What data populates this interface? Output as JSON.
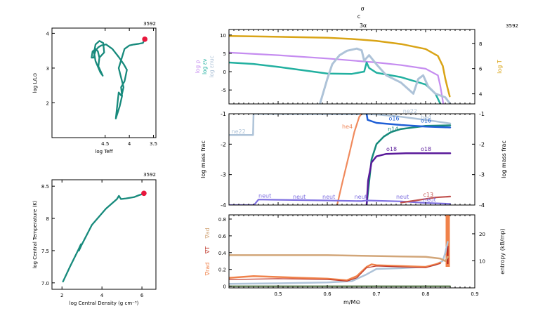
{
  "figure": {
    "top_markers": [
      "σ",
      "c",
      "3α"
    ],
    "model_number": "3592"
  },
  "chart_data": [
    {
      "id": "hr",
      "type": "line",
      "xlabel": "log Teff",
      "ylabel": "log L/L⊙",
      "xlim": [
        5.6,
        3.45
      ],
      "ylim": [
        1.0,
        4.15
      ],
      "xticks": [
        4.5,
        4,
        3.5
      ],
      "xtick_labels": [
        "4.5",
        "4",
        "3.5"
      ],
      "yticks": [
        2,
        3,
        4
      ],
      "ytick_labels": [
        "2",
        "3",
        "4"
      ],
      "line_color": "#178a7c",
      "marker_color": "#e8163c",
      "current_point": [
        3.68,
        3.83
      ],
      "series": [
        {
          "x": [
            4.62,
            4.52,
            4.54,
            4.62,
            4.7,
            4.73,
            4.7,
            4.6,
            4.55,
            4.64,
            4.62,
            4.65,
            4.7,
            4.76,
            4.78,
            4.74,
            4.7,
            4.64,
            4.58,
            4.48,
            4.35,
            4.22,
            4.12,
            4.05,
            4.1,
            4.17,
            4.15,
            4.2,
            4.28,
            4.22,
            4.16,
            4.12,
            4.22,
            4.1,
            4.0,
            3.9,
            3.8,
            3.72,
            3.68
          ],
          "y": [
            3.3,
            3.45,
            3.72,
            3.78,
            3.68,
            3.45,
            3.2,
            2.88,
            2.78,
            3.05,
            3.3,
            3.48,
            3.55,
            3.48,
            3.3,
            3.3,
            3.5,
            3.6,
            3.65,
            3.68,
            3.55,
            3.32,
            3.12,
            2.95,
            2.62,
            2.45,
            2.2,
            1.9,
            1.55,
            2.3,
            2.2,
            2.45,
            3.0,
            3.55,
            3.65,
            3.68,
            3.7,
            3.72,
            3.83
          ]
        }
      ]
    },
    {
      "id": "center",
      "type": "line",
      "xlabel": "log Central Density (g cm⁻³)",
      "ylabel": "log Central Temperature (K)",
      "xlim": [
        1.5,
        6.7
      ],
      "ylim": [
        6.9,
        8.6
      ],
      "xticks": [
        2,
        4,
        6
      ],
      "xtick_labels": [
        "2",
        "4",
        "6"
      ],
      "yticks": [
        7.0,
        7.5,
        8.0,
        8.5
      ],
      "ytick_labels": [
        "7.0",
        "7.5",
        "8",
        "8.5"
      ],
      "line_color": "#178a7c",
      "marker_color": "#e8163c",
      "current_point": [
        6.1,
        8.39
      ],
      "series": [
        {
          "x": [
            2.05,
            2.4,
            2.8,
            2.95,
            2.85,
            3.0,
            3.5,
            4.2,
            4.75,
            4.85,
            4.95,
            5.2,
            5.6,
            5.85,
            6.05,
            6.1
          ],
          "y": [
            7.02,
            7.25,
            7.5,
            7.6,
            7.5,
            7.6,
            7.9,
            8.15,
            8.3,
            8.35,
            8.3,
            8.31,
            8.33,
            8.36,
            8.38,
            8.39
          ]
        }
      ]
    },
    {
      "id": "profile_top",
      "type": "line",
      "xlim": [
        0.4,
        0.9
      ],
      "ylim_left": [
        -8.8,
        11.5
      ],
      "ylim_right": [
        3.2,
        9.1
      ],
      "yticks_left": [
        -5,
        0,
        5,
        10
      ],
      "ytick_labels_left": [
        "-5",
        "0",
        "5",
        "10"
      ],
      "yticks_right": [
        4,
        6,
        8
      ],
      "ytick_labels_right": [
        "4",
        "6",
        "8"
      ],
      "xticks": [
        0.5,
        0.6,
        0.7,
        0.8,
        0.9
      ],
      "left_labels": [
        {
          "text": "log ρ",
          "color": "#c58cf0"
        },
        {
          "text": "log εν",
          "color": "#22b0a0"
        },
        {
          "text": "log εnuc",
          "color": "#aec3d8"
        }
      ],
      "right_label": {
        "text": "log T",
        "color": "#d9a416"
      },
      "series": [
        {
          "name": "log ρ",
          "axis": "left",
          "color": "#c58cf0",
          "width": 2.2,
          "x": [
            0.4,
            0.5,
            0.6,
            0.7,
            0.75,
            0.8,
            0.825,
            0.83,
            0.836
          ],
          "y": [
            5.2,
            4.5,
            3.6,
            2.5,
            1.8,
            0.8,
            -1.0,
            -4.0,
            -8.8
          ]
        },
        {
          "name": "log εν",
          "axis": "left",
          "color": "#22b0a0",
          "width": 2.5,
          "x": [
            0.4,
            0.45,
            0.5,
            0.55,
            0.6,
            0.65,
            0.675,
            0.68,
            0.685,
            0.7,
            0.75,
            0.8,
            0.82,
            0.83
          ],
          "y": [
            2.5,
            2.1,
            1.3,
            0.4,
            -0.5,
            -0.6,
            0.0,
            2.5,
            1.0,
            -0.3,
            -1.5,
            -3.5,
            -6.0,
            -8.8
          ]
        },
        {
          "name": "log εnuc",
          "axis": "left",
          "color": "#aec3d8",
          "width": 3.0,
          "x": [
            0.585,
            0.6,
            0.61,
            0.625,
            0.64,
            0.66,
            0.67,
            0.675,
            0.685,
            0.7,
            0.72,
            0.75,
            0.775,
            0.785,
            0.795,
            0.805,
            0.82,
            0.84,
            0.85
          ],
          "y": [
            -8.8,
            -2.0,
            2.0,
            4.5,
            5.7,
            6.3,
            5.8,
            3.0,
            4.5,
            2.0,
            -1.0,
            -3.0,
            -6.0,
            -2.0,
            -1.0,
            -4.0,
            -6.0,
            -7.0,
            -8.8
          ]
        },
        {
          "name": "log T",
          "axis": "right",
          "color": "#d9a416",
          "width": 2.5,
          "x": [
            0.4,
            0.5,
            0.6,
            0.65,
            0.7,
            0.75,
            0.8,
            0.825,
            0.835,
            0.84,
            0.845,
            0.847,
            0.849
          ],
          "y": [
            8.58,
            8.52,
            8.45,
            8.35,
            8.2,
            7.95,
            7.55,
            7.0,
            6.2,
            5.2,
            4.4,
            4.1,
            3.8
          ]
        }
      ]
    },
    {
      "id": "profile_mid",
      "type": "line",
      "xlim": [
        0.4,
        0.9
      ],
      "ylim": [
        -4,
        -1
      ],
      "yticks": [
        -4,
        -3,
        -2,
        -1
      ],
      "ytick_labels": [
        "-4",
        "-3",
        "-2",
        "-1"
      ],
      "xticks": [
        0.5,
        0.6,
        0.7,
        0.8,
        0.9
      ],
      "ylabel_left": "log mass frac",
      "ylabel_right": "log mass frac",
      "series": [
        {
          "name": "ne22",
          "color": "#aec3d8",
          "width": 2.5,
          "x": [
            0.4,
            0.449,
            0.45,
            0.451,
            0.7,
            0.75,
            0.8,
            0.85
          ],
          "y": [
            -1.7,
            -1.7,
            -1.0,
            -1.0,
            -1.02,
            -1.1,
            -1.2,
            -1.32
          ]
        },
        {
          "name": "he4",
          "color": "#f08a5d",
          "width": 2.2,
          "x": [
            0.62,
            0.63,
            0.645,
            0.655,
            0.665,
            0.67
          ],
          "y": [
            -4.0,
            -3.3,
            -2.3,
            -1.6,
            -1.1,
            -1.0
          ]
        },
        {
          "name": "n14",
          "color": "#178a7c",
          "width": 2.5,
          "x": [
            0.68,
            0.69,
            0.7,
            0.715,
            0.73,
            0.75,
            0.8,
            0.85
          ],
          "y": [
            -4.0,
            -2.5,
            -2.0,
            -1.75,
            -1.6,
            -1.5,
            -1.4,
            -1.38
          ]
        },
        {
          "name": "o16",
          "color": "#1f5fd6",
          "width": 2.5,
          "x": [
            0.68,
            0.682,
            0.7,
            0.75,
            0.8,
            0.85
          ],
          "y": [
            -1.0,
            -1.2,
            -1.3,
            -1.37,
            -1.42,
            -1.45
          ]
        },
        {
          "name": "o18",
          "color": "#5a1a9a",
          "width": 2.5,
          "x": [
            0.68,
            0.683,
            0.69,
            0.7,
            0.72,
            0.76,
            0.85
          ],
          "y": [
            -4.0,
            -3.2,
            -2.6,
            -2.4,
            -2.32,
            -2.3,
            -2.3
          ]
        },
        {
          "name": "neut",
          "color": "#7e6fe0",
          "width": 2.2,
          "x": [
            0.4,
            0.451,
            0.46,
            0.6,
            0.67,
            0.68,
            0.75,
            0.8,
            0.85
          ],
          "y": [
            -4.0,
            -4.0,
            -3.82,
            -3.85,
            -3.87,
            -3.85,
            -3.88,
            -3.93,
            -3.96
          ]
        },
        {
          "name": "c13",
          "color": "#c0504d",
          "width": 2.2,
          "x": [
            0.75,
            0.78,
            0.8,
            0.82,
            0.85
          ],
          "y": [
            -3.92,
            -3.85,
            -3.8,
            -3.75,
            -3.72
          ]
        }
      ],
      "annotations": [
        {
          "text": "ne22",
          "x": 0.405,
          "y": -1.65,
          "color": "#aec3d8"
        },
        {
          "text": "ne22",
          "x": 0.754,
          "y": -0.98,
          "color": "#aec3d8"
        },
        {
          "text": "he4",
          "x": 0.63,
          "y": -1.48,
          "color": "#f08a5d"
        },
        {
          "text": "n14",
          "x": 0.723,
          "y": -1.57,
          "color": "#178a7c"
        },
        {
          "text": "o16",
          "x": 0.725,
          "y": -1.22,
          "color": "#1f5fd6"
        },
        {
          "text": "o16",
          "x": 0.79,
          "y": -1.29,
          "color": "#1f5fd6"
        },
        {
          "text": "he4",
          "x": 0.79,
          "y": -1.19,
          "color": "#aec3d8"
        },
        {
          "text": "o18",
          "x": 0.72,
          "y": -2.22,
          "color": "#5a1a9a"
        },
        {
          "text": "o18",
          "x": 0.79,
          "y": -2.22,
          "color": "#5a1a9a"
        },
        {
          "text": "neut",
          "x": 0.46,
          "y": -3.76,
          "color": "#7e6fe0"
        },
        {
          "text": "neut",
          "x": 0.53,
          "y": -3.79,
          "color": "#7e6fe0"
        },
        {
          "text": "neut",
          "x": 0.59,
          "y": -3.79,
          "color": "#7e6fe0"
        },
        {
          "text": "neut",
          "x": 0.655,
          "y": -3.79,
          "color": "#7e6fe0"
        },
        {
          "text": "neut",
          "x": 0.74,
          "y": -3.79,
          "color": "#7e6fe0"
        },
        {
          "text": "c13",
          "x": 0.795,
          "y": -3.72,
          "color": "#c0504d"
        },
        {
          "text": "neut",
          "x": 0.795,
          "y": -3.88,
          "color": "#7e6fe0"
        }
      ]
    },
    {
      "id": "profile_bot",
      "type": "line",
      "xlim": [
        0.4,
        0.9
      ],
      "ylim_left": [
        -0.02,
        0.85
      ],
      "ylim_right": [
        0,
        27
      ],
      "yticks_left": [
        0,
        0.2,
        0.4,
        0.6,
        0.8
      ],
      "ytick_labels_left": [
        "0",
        "0.2",
        "0.4",
        "0.6",
        "0.8"
      ],
      "yticks_right": [
        10,
        20
      ],
      "ytick_labels_right": [
        "10",
        "20"
      ],
      "xticks": [
        0.5,
        0.6,
        0.7,
        0.8,
        0.9
      ],
      "xtick_labels": [
        "0.5",
        "0.6",
        "0.7",
        "0.8",
        "0.9"
      ],
      "xlabel": "m/M⊙",
      "left_labels": [
        {
          "text": "∇ad",
          "color": "#d2a679"
        },
        {
          "text": "∇T",
          "color": "#c0392b"
        },
        {
          "text": "∇rad",
          "color": "#f0824a"
        }
      ],
      "right_label": {
        "text": "entropy (kB/mp)",
        "color": "#222222"
      },
      "series": [
        {
          "name": "entropy",
          "axis": "right",
          "color": "#aec3d8",
          "width": 2.5,
          "x": [
            0.4,
            0.5,
            0.6,
            0.65,
            0.68,
            0.7,
            0.75,
            0.8,
            0.82,
            0.835,
            0.84,
            0.845
          ],
          "y": [
            1.5,
            1.7,
            2.0,
            2.5,
            5.0,
            7.0,
            7.3,
            7.8,
            8.5,
            10.0,
            13.0,
            17.0
          ]
        },
        {
          "name": "∇ad",
          "axis": "left",
          "color": "#d2a679",
          "width": 2.5,
          "x": [
            0.4,
            0.5,
            0.6,
            0.65,
            0.7,
            0.75,
            0.8,
            0.83,
            0.84,
            0.845
          ],
          "y": [
            0.37,
            0.37,
            0.37,
            0.365,
            0.36,
            0.355,
            0.35,
            0.33,
            0.3,
            0.35
          ]
        },
        {
          "name": "∇rad",
          "axis": "left",
          "color": "#f0824a",
          "width": 2.5,
          "x": [
            0.4,
            0.45,
            0.5,
            0.55,
            0.6,
            0.64,
            0.66,
            0.68,
            0.69,
            0.7,
            0.75,
            0.8,
            0.82,
            0.83
          ],
          "y": [
            0.1,
            0.12,
            0.11,
            0.1,
            0.09,
            0.07,
            0.12,
            0.23,
            0.26,
            0.25,
            0.24,
            0.23,
            0.26,
            0.28
          ]
        },
        {
          "name": "∇T",
          "axis": "left",
          "color": "#c0392b",
          "width": 1.2,
          "x": [
            0.4,
            0.5,
            0.6,
            0.64,
            0.66,
            0.68,
            0.7,
            0.75,
            0.8,
            0.83
          ],
          "y": [
            0.08,
            0.09,
            0.08,
            0.06,
            0.1,
            0.22,
            0.24,
            0.23,
            0.22,
            0.27
          ]
        },
        {
          "name": "floor",
          "axis": "left",
          "color": "#4a6b3c",
          "width": 2,
          "x": [
            0.4,
            0.85
          ],
          "y": [
            0.0,
            0.0
          ]
        }
      ],
      "spike": {
        "x": 0.845,
        "color": "#f0824a"
      }
    }
  ]
}
